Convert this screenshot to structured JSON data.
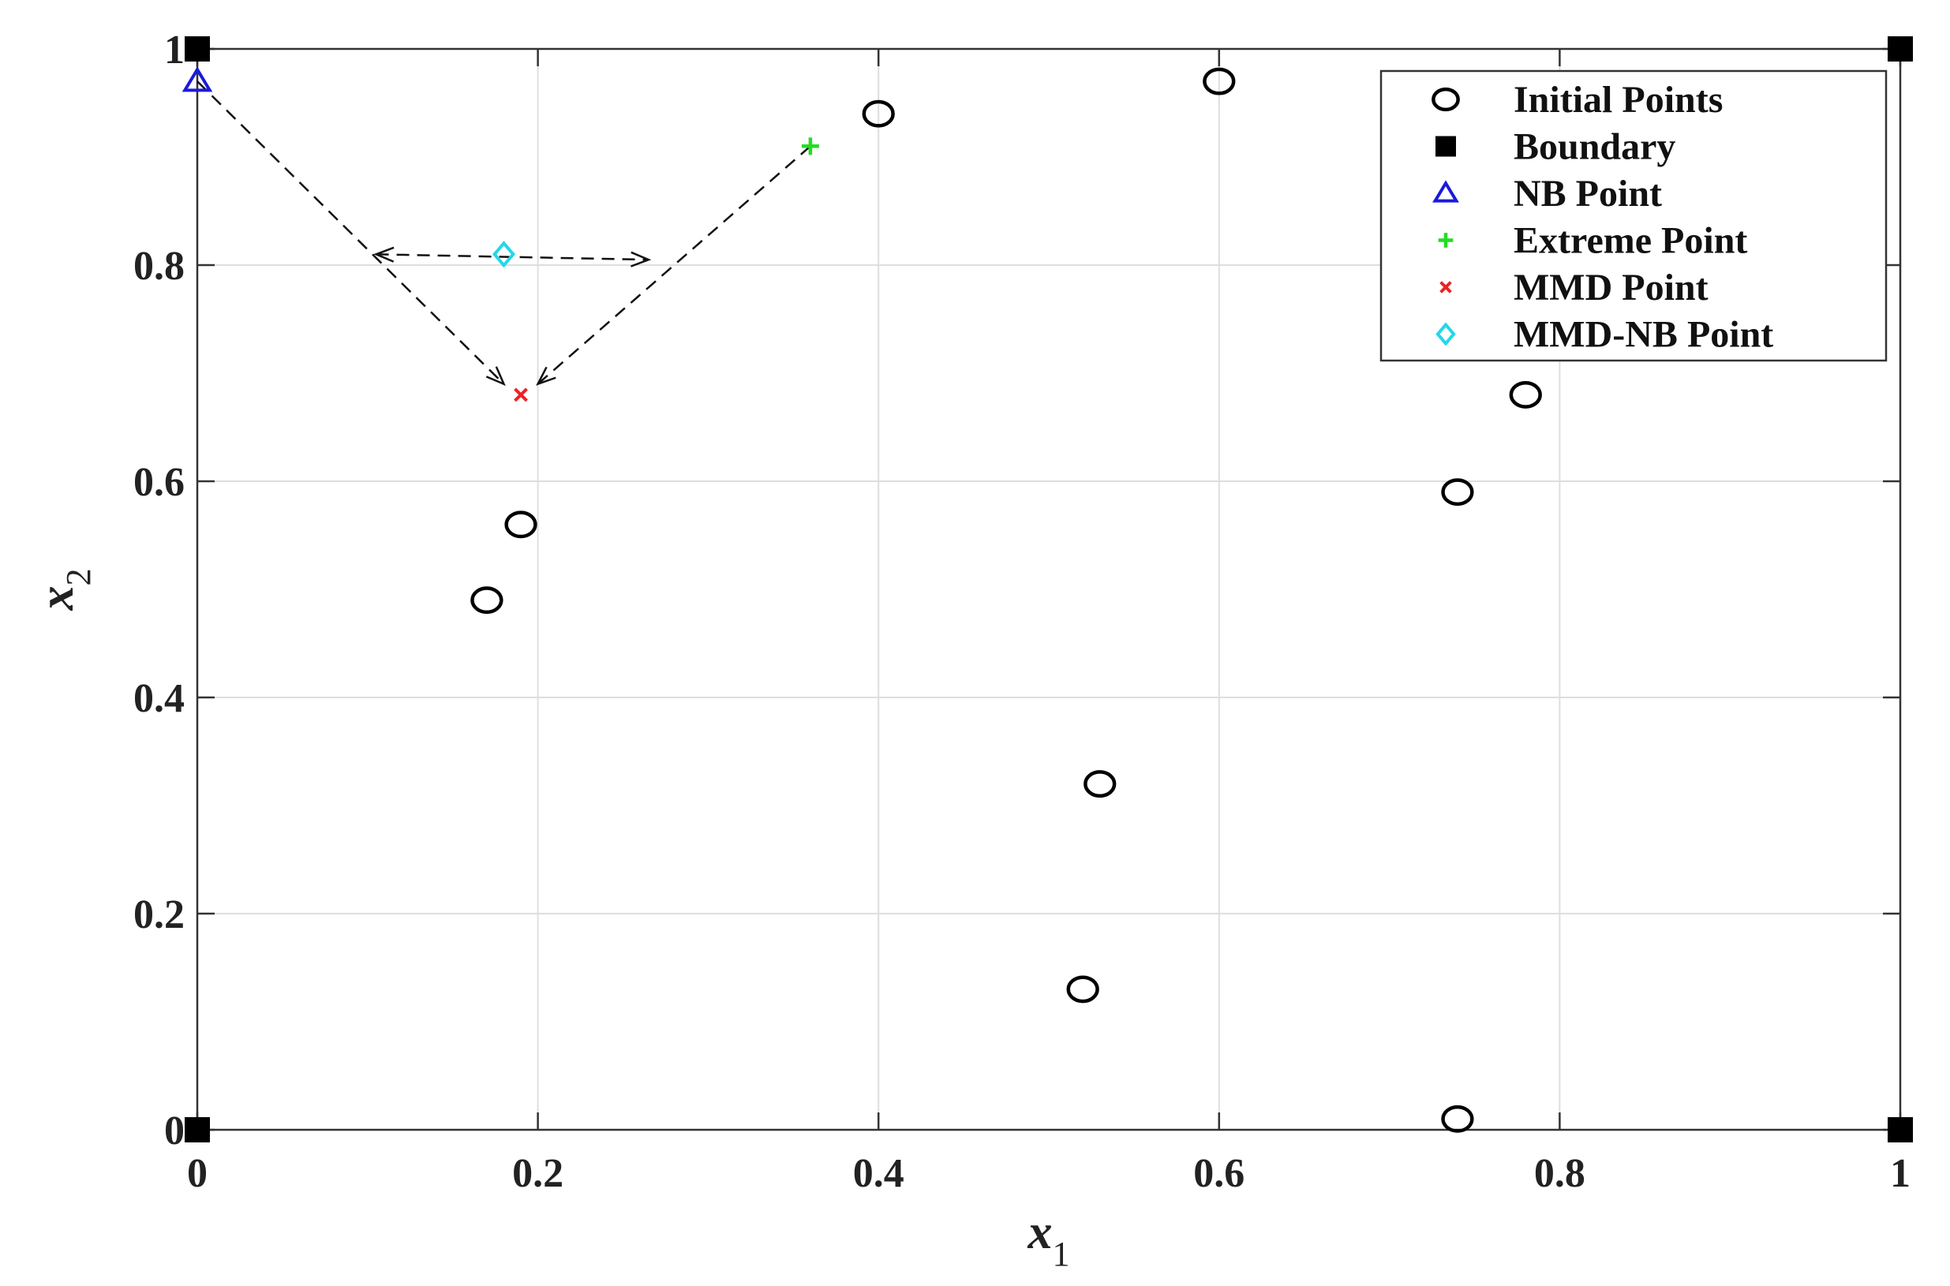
{
  "chart_data": {
    "type": "scatter",
    "title": "",
    "xlabel": "x",
    "xlabel_sub": "1",
    "ylabel": "x",
    "ylabel_sub": "2",
    "xlim": [
      0,
      1
    ],
    "ylim": [
      0,
      1
    ],
    "x_ticks": [
      0,
      0.2,
      0.4,
      0.6,
      0.8,
      1
    ],
    "y_ticks": [
      0,
      0.2,
      0.4,
      0.6,
      0.8,
      1
    ],
    "x_tick_labels": [
      "0",
      "0.2",
      "0.4",
      "0.6",
      "0.8",
      "1"
    ],
    "y_tick_labels": [
      "0",
      "0.2",
      "0.4",
      "0.6",
      "0.8",
      "1"
    ],
    "grid": true,
    "legend_position": "top-right",
    "series": [
      {
        "name": "Initial Points",
        "marker": "circle",
        "color": "#000000",
        "points": [
          {
            "x": 0.4,
            "y": 0.94
          },
          {
            "x": 0.6,
            "y": 0.97
          },
          {
            "x": 0.78,
            "y": 0.68
          },
          {
            "x": 0.74,
            "y": 0.59
          },
          {
            "x": 0.19,
            "y": 0.56
          },
          {
            "x": 0.17,
            "y": 0.49
          },
          {
            "x": 0.53,
            "y": 0.32
          },
          {
            "x": 0.52,
            "y": 0.13
          },
          {
            "x": 0.74,
            "y": 0.01
          }
        ]
      },
      {
        "name": "Boundary",
        "marker": "square",
        "color": "#000000",
        "points": [
          {
            "x": 0,
            "y": 1
          },
          {
            "x": 1,
            "y": 1
          },
          {
            "x": 0,
            "y": 0
          },
          {
            "x": 1,
            "y": 0
          }
        ]
      },
      {
        "name": "NB Point",
        "marker": "triangle",
        "color": "#1a1adb",
        "points": [
          {
            "x": 0,
            "y": 0.97
          }
        ]
      },
      {
        "name": "Extreme Point",
        "marker": "plus",
        "color": "#22dd22",
        "points": [
          {
            "x": 0.36,
            "y": 0.91
          }
        ]
      },
      {
        "name": "MMD Point",
        "marker": "cross",
        "color": "#ee2222",
        "points": [
          {
            "x": 0.19,
            "y": 0.68
          }
        ]
      },
      {
        "name": "MMD-NB Point",
        "marker": "diamond",
        "color": "#22d8e8",
        "points": [
          {
            "x": 0.18,
            "y": 0.81
          }
        ]
      }
    ],
    "arrows": [
      {
        "from": {
          "x": 0,
          "y": 0.97
        },
        "to": {
          "x": 0.18,
          "y": 0.69
        },
        "heads": "end"
      },
      {
        "from": {
          "x": 0.36,
          "y": 0.91
        },
        "to": {
          "x": 0.2,
          "y": 0.69
        },
        "heads": "end"
      },
      {
        "from": {
          "x": 0.105,
          "y": 0.81
        },
        "to": {
          "x": 0.265,
          "y": 0.805
        },
        "heads": "both"
      }
    ]
  }
}
